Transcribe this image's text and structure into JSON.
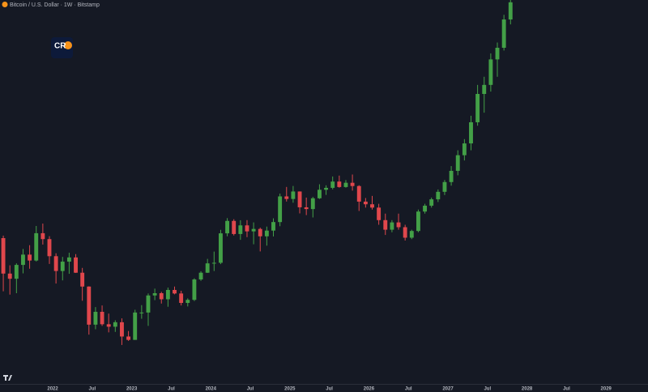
{
  "chart_data": {
    "type": "candlestick",
    "title": "Bitcoin / U.S. Dollar · 1W · Bitstamp",
    "logo": "CR",
    "log_scale": true,
    "up_color": "#43a047",
    "down_color": "#e0474c",
    "x": [
      "2021-05",
      "2021-06",
      "2021-07",
      "2021-08",
      "2021-09",
      "2021-10",
      "2021-11",
      "2021-12",
      "2022-01",
      "2022-02",
      "2022-03",
      "2022-04",
      "2022-05",
      "2022-06",
      "2022-07",
      "2022-08",
      "2022-09",
      "2022-10",
      "2022-11",
      "2022-12",
      "2023-01",
      "2023-02",
      "2023-03",
      "2023-04",
      "2023-05",
      "2023-06",
      "2023-07",
      "2023-08",
      "2023-09",
      "2023-10",
      "2023-11",
      "2023-12",
      "2024-01",
      "2024-02",
      "2024-03",
      "2024-04",
      "2024-05",
      "2024-06",
      "2024-07",
      "2024-08",
      "2024-09",
      "2024-10",
      "2024-11",
      "2024-12",
      "2025-01",
      "2025-02",
      "2025-03",
      "2025-04",
      "2025-05",
      "2025-06",
      "2025-07",
      "2025-08",
      "2025-09",
      "2025-10",
      "2025-11",
      "2025-12",
      "2026-01",
      "2026-02",
      "2026-03",
      "2026-04",
      "2026-05",
      "2026-06",
      "2026-07",
      "2026-08",
      "2026-09",
      "2026-10",
      "2026-11",
      "2026-12",
      "2027-01",
      "2027-02",
      "2027-03",
      "2027-04",
      "2027-05",
      "2027-06",
      "2027-07",
      "2027-08",
      "2027-09",
      "2027-10"
    ],
    "open": [
      57700,
      37300,
      35000,
      41500,
      47100,
      43800,
      61300,
      57000,
      46200,
      38500,
      43200,
      45500,
      37700,
      31800,
      19900,
      23300,
      20000,
      19400,
      20500,
      17200,
      16500,
      23100,
      23100,
      28500,
      29300,
      27200,
      30500,
      29200,
      26000,
      27000,
      34700,
      37700,
      42300,
      42600,
      61200,
      71300,
      60700,
      67500,
      62700,
      64600,
      59000,
      63300,
      70300,
      96400,
      93400,
      102400,
      84300,
      82500,
      94200,
      104600,
      107100,
      115700,
      108200,
      114000,
      109500,
      90400,
      87500,
      84000,
      72000,
      64000,
      70000,
      66000,
      58000,
      63000,
      80000,
      86000,
      93000,
      102000,
      115000,
      132000,
      160000,
      185000,
      240000,
      340000,
      380000,
      520000,
      600000,
      850000
    ],
    "high": [
      59500,
      41300,
      42300,
      50500,
      52900,
      67000,
      69000,
      59100,
      47900,
      45800,
      48200,
      47400,
      40000,
      31900,
      24700,
      25200,
      22800,
      21000,
      21500,
      18400,
      23900,
      25300,
      29200,
      31000,
      29800,
      31400,
      31800,
      30200,
      27500,
      35200,
      38400,
      44700,
      48900,
      63900,
      73800,
      72800,
      71900,
      72000,
      70000,
      65600,
      66500,
      73600,
      99800,
      108300,
      109600,
      102500,
      95000,
      95800,
      111900,
      110500,
      123200,
      124500,
      117900,
      126200,
      110600,
      94500,
      97000,
      88000,
      78000,
      72000,
      78000,
      68000,
      64000,
      82000,
      88000,
      95000,
      105000,
      118000,
      140000,
      170000,
      195000,
      260000,
      380000,
      420000,
      560000,
      640000,
      900000,
      1080000
    ],
    "low": [
      30000,
      28800,
      29300,
      37400,
      39600,
      43300,
      53300,
      42000,
      33000,
      34300,
      37200,
      37600,
      26700,
      17600,
      18800,
      19600,
      18100,
      18200,
      15500,
      16300,
      16500,
      21400,
      19600,
      26900,
      25800,
      24800,
      28900,
      25200,
      24900,
      26600,
      34100,
      37600,
      38500,
      41900,
      59000,
      59600,
      56500,
      58400,
      53500,
      49000,
      52600,
      58900,
      66800,
      90500,
      89200,
      78200,
      76600,
      74400,
      93400,
      98200,
      105100,
      107300,
      107300,
      103500,
      80600,
      84000,
      82000,
      68000,
      60000,
      62000,
      64000,
      56000,
      57000,
      62000,
      78000,
      84000,
      90000,
      98000,
      110000,
      125000,
      150000,
      170000,
      230000,
      270000,
      350000,
      420000,
      580000,
      800000
    ],
    "close": [
      37300,
      35000,
      41500,
      47100,
      43800,
      61300,
      57000,
      46200,
      38500,
      43200,
      45500,
      37700,
      31800,
      19900,
      23300,
      20000,
      19400,
      20500,
      17200,
      16500,
      23100,
      23100,
      28500,
      29300,
      27200,
      30500,
      29200,
      26000,
      27000,
      34700,
      37700,
      42300,
      42600,
      61200,
      71300,
      60700,
      67500,
      62700,
      64600,
      59000,
      63300,
      70300,
      96400,
      93400,
      102400,
      84300,
      82500,
      94200,
      104600,
      107100,
      115700,
      108200,
      114000,
      109500,
      90400,
      87500,
      84000,
      72000,
      64000,
      70000,
      66000,
      58000,
      63000,
      80000,
      86000,
      93000,
      102000,
      115000,
      132000,
      160000,
      185000,
      240000,
      340000,
      380000,
      520000,
      600000,
      850000,
      1050000
    ],
    "ylim": [
      9600,
      1080000
    ],
    "xlim": [
      "2021-05",
      "2029-07"
    ],
    "xticks": [
      {
        "value": "2022-01",
        "label": "2022"
      },
      {
        "value": "2022-07",
        "label": "Jul"
      },
      {
        "value": "2023-01",
        "label": "2023"
      },
      {
        "value": "2023-07",
        "label": "Jul"
      },
      {
        "value": "2024-01",
        "label": "2024"
      },
      {
        "value": "2024-07",
        "label": "Jul"
      },
      {
        "value": "2025-01",
        "label": "2025"
      },
      {
        "value": "2025-07",
        "label": "Jul"
      },
      {
        "value": "2026-01",
        "label": "2026"
      },
      {
        "value": "2026-07",
        "label": "Jul"
      },
      {
        "value": "2027-01",
        "label": "2027"
      },
      {
        "value": "2027-07",
        "label": "Jul"
      },
      {
        "value": "2028-01",
        "label": "2028"
      },
      {
        "value": "2028-07",
        "label": "Jul"
      },
      {
        "value": "2029-01",
        "label": "2029"
      }
    ]
  }
}
